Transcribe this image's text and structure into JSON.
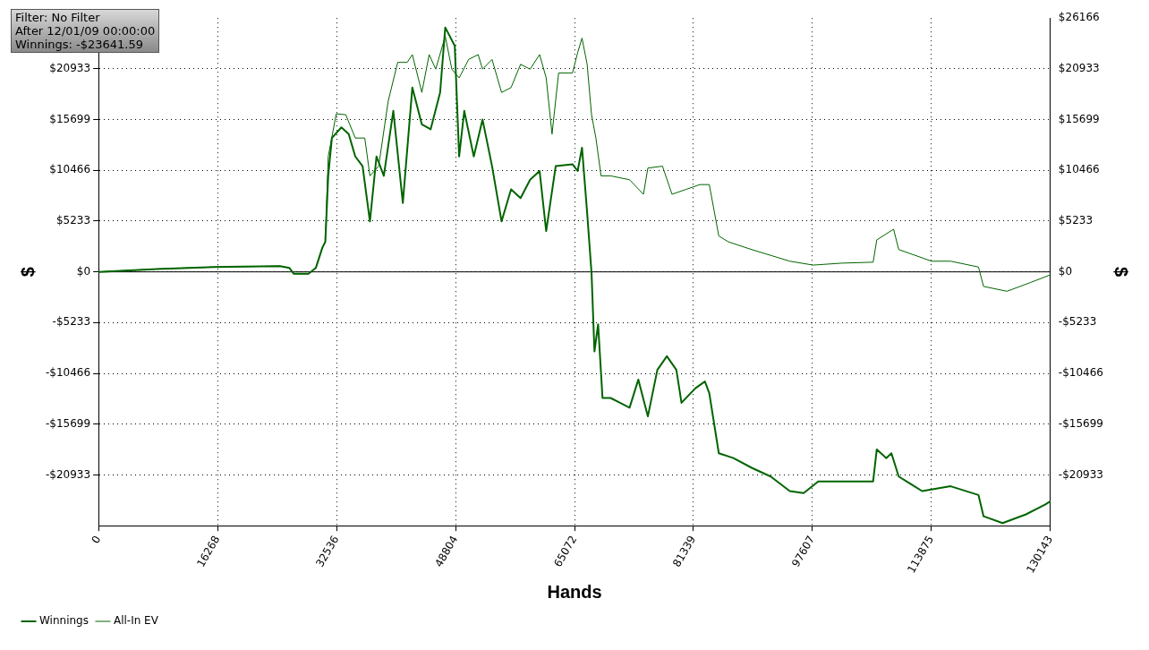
{
  "chart_data": {
    "type": "line",
    "xlabel": "Hands",
    "ylabel": "$",
    "y2label": "$",
    "annotations": [
      "Filter: No Filter",
      "After 12/01/09 00:00:00",
      "Winnings: -$23641.59"
    ],
    "xlim": [
      0,
      130143
    ],
    "xticks": [
      0,
      16268,
      32536,
      48804,
      65072,
      81339,
      97607,
      113875,
      130143
    ],
    "ylim": [
      -26166,
      26166
    ],
    "yticks": [
      {
        "value": -20933,
        "label": "-$20933"
      },
      {
        "value": -15699,
        "label": "-$15699"
      },
      {
        "value": -10466,
        "label": "-$10466"
      },
      {
        "value": -5233,
        "label": "-$5233"
      },
      {
        "value": 0,
        "label": "$0"
      },
      {
        "value": 5233,
        "label": "$5233"
      },
      {
        "value": 10466,
        "label": "$10466"
      },
      {
        "value": 15699,
        "label": "$15699"
      },
      {
        "value": 20933,
        "label": "$20933"
      }
    ],
    "y2lim": [
      -26166,
      26166
    ],
    "y2ticks": [
      {
        "value": -20933,
        "label": "-$20933"
      },
      {
        "value": -15699,
        "label": "-$15699"
      },
      {
        "value": -10466,
        "label": "-$10466"
      },
      {
        "value": -5233,
        "label": "-$5233"
      },
      {
        "value": 0,
        "label": "$0"
      },
      {
        "value": 5233,
        "label": "$5233"
      },
      {
        "value": 10466,
        "label": "$10466"
      },
      {
        "value": 15699,
        "label": "$15699"
      },
      {
        "value": 20933,
        "label": "$20933"
      },
      {
        "value": 26166,
        "label": "$26166"
      }
    ],
    "grid": true,
    "legend": "bottom left",
    "marker": "none",
    "line_style": "solid",
    "ref_lines": [
      {
        "axis": "y",
        "value": 0,
        "color": "#000000"
      }
    ],
    "series": [
      {
        "name": "Winnings",
        "color": "#006400",
        "x": [
          0,
          8000,
          15800,
          24800,
          26100,
          26700,
          28700,
          29700,
          30600,
          31000,
          31400,
          31900,
          33200,
          34200,
          35100,
          36100,
          37100,
          38000,
          39000,
          40300,
          41600,
          42900,
          44200,
          45400,
          46700,
          47400,
          48700,
          49300,
          50000,
          51300,
          52500,
          53800,
          55100,
          56400,
          57700,
          59000,
          60300,
          61200,
          62500,
          64800,
          65500,
          66100,
          66800,
          67400,
          67800,
          68300,
          68900,
          70000,
          71300,
          72600,
          73800,
          75100,
          76400,
          77700,
          79000,
          79700,
          81600,
          82900,
          83500,
          84800,
          86800,
          89300,
          91900,
          94500,
          96400,
          98400,
          102200,
          105900,
          106400,
          107700,
          108400,
          109400,
          112600,
          116500,
          120300,
          121000,
          123600,
          126800,
          129400,
          130143
        ],
        "values": [
          0,
          300,
          500,
          600,
          400,
          -200,
          -200,
          400,
          2500,
          3100,
          9900,
          13800,
          14900,
          14200,
          11900,
          10900,
          5200,
          11900,
          9900,
          16600,
          7100,
          19000,
          15200,
          14700,
          18500,
          25200,
          23300,
          11900,
          16600,
          11900,
          15700,
          10900,
          5200,
          8500,
          7600,
          9500,
          10400,
          4200,
          10900,
          11100,
          10400,
          12800,
          6100,
          -100,
          -8200,
          -5400,
          -13000,
          -13000,
          -13500,
          -14000,
          -11100,
          -14900,
          -10100,
          -8700,
          -10100,
          -13500,
          -12000,
          -11300,
          -12500,
          -18700,
          -19200,
          -20200,
          -21100,
          -22600,
          -22800,
          -21600,
          -21600,
          -21600,
          -18300,
          -19200,
          -18700,
          -21100,
          -22600,
          -22100,
          -23000,
          -25200,
          -25900,
          -25000,
          -24000,
          -23642
        ]
      },
      {
        "name": "All-In EV",
        "color": "#006400",
        "x": [
          0,
          8000,
          15800,
          24800,
          26100,
          26700,
          28700,
          29700,
          30600,
          31000,
          31400,
          32500,
          33800,
          35100,
          36400,
          37100,
          38300,
          39600,
          40900,
          42200,
          42900,
          44200,
          45200,
          46100,
          47400,
          48300,
          49300,
          50600,
          51900,
          52500,
          53800,
          55100,
          56400,
          57700,
          59000,
          60300,
          61200,
          62000,
          62900,
          64800,
          65500,
          66100,
          66800,
          67400,
          68000,
          68700,
          70000,
          72600,
          74500,
          75100,
          77100,
          78400,
          80300,
          82200,
          83500,
          84800,
          86100,
          89300,
          94500,
          97700,
          101600,
          105900,
          106400,
          108700,
          109400,
          113900,
          116500,
          120300,
          121000,
          124200,
          127400,
          130143
        ],
        "values": [
          0,
          300,
          500,
          600,
          400,
          -200,
          -200,
          400,
          2500,
          3100,
          11900,
          16300,
          16200,
          13800,
          13800,
          9900,
          10900,
          17600,
          21600,
          21600,
          22400,
          18500,
          22400,
          20900,
          24300,
          20900,
          20000,
          21900,
          22400,
          20900,
          21900,
          18500,
          19000,
          21400,
          20900,
          22400,
          20000,
          14200,
          20500,
          20500,
          22600,
          24100,
          21400,
          16200,
          13800,
          9900,
          9900,
          9500,
          8000,
          10700,
          10900,
          8000,
          8500,
          9000,
          9000,
          3700,
          3100,
          2300,
          1100,
          700,
          900,
          1000,
          3300,
          4400,
          2300,
          1100,
          1100,
          500,
          -1500,
          -2000,
          -1100,
          -300
        ]
      }
    ]
  }
}
